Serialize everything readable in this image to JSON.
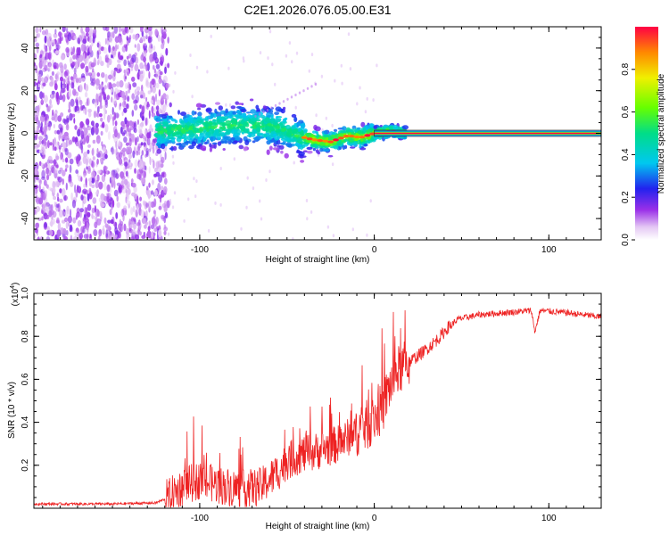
{
  "title": "C2E1.2026.076.05.00.E31",
  "colors": {
    "snr_line": "#ee2222",
    "frame": "#000000",
    "background": "#ffffff"
  },
  "chart_data": [
    {
      "type": "heatmap",
      "title": "C2E1.2026.076.05.00.E31",
      "xlabel": "Height of straight line (km)",
      "ylabel": "Frequency (Hz)",
      "xlim": [
        -195,
        130
      ],
      "ylim": [
        -50,
        50
      ],
      "xticks": [
        -100,
        0,
        100
      ],
      "yticks": [
        -40,
        -20,
        0,
        20,
        40
      ],
      "colorbar": {
        "label": "Normalized spectral amplitude",
        "range": [
          0.0,
          1.0
        ],
        "ticks": [
          0.0,
          0.2,
          0.4,
          0.6,
          0.8
        ],
        "tick_labels": [
          "0.0",
          "0.2",
          "0.4",
          "0.6",
          "0.8"
        ]
      },
      "features": {
        "noise_region_x": [
          -195,
          -118
        ],
        "spread_band_x": [
          -125,
          18
        ],
        "carrier_line_x": [
          0,
          130
        ],
        "carrier_frequency": 0,
        "center_profile": [
          [
            -120,
            1
          ],
          [
            -80,
            4
          ],
          [
            -55,
            3
          ],
          [
            -45,
            -1
          ],
          [
            -35,
            -3
          ],
          [
            -25,
            -4
          ],
          [
            -15,
            -1
          ],
          [
            -8,
            -2
          ],
          [
            0,
            0
          ],
          [
            10,
            1
          ],
          [
            18,
            0
          ]
        ]
      }
    },
    {
      "type": "line",
      "xlabel": "Height of straight line (km)",
      "ylabel": "SNR (10 * v/v)",
      "y_multiplier": "(x10^4)",
      "y_multiplier_parts": {
        "base": "(x10",
        "exp": "4",
        "close": ")"
      },
      "xlim": [
        -195,
        130
      ],
      "ylim": [
        0,
        1.0
      ],
      "xticks": [
        -100,
        0,
        100
      ],
      "yticks": [
        0.2,
        0.4,
        0.6,
        0.8,
        1.0
      ],
      "ytick_labels": [
        "0.2",
        "0.4",
        "0.6",
        "0.8",
        "1.0"
      ],
      "series": [
        {
          "name": "SNR",
          "x": [
            -195,
            -150,
            -125,
            -118,
            -110,
            -100,
            -95,
            -85,
            -75,
            -65,
            -55,
            -50,
            -42,
            -35,
            -28,
            -20,
            -10,
            -5,
            0,
            5,
            8,
            12,
            15,
            20,
            25,
            30,
            38,
            42,
            48,
            60,
            75,
            90,
            92,
            95,
            110,
            130
          ],
          "y": [
            0.02,
            0.02,
            0.025,
            0.05,
            0.1,
            0.13,
            0.12,
            0.1,
            0.09,
            0.1,
            0.17,
            0.22,
            0.25,
            0.26,
            0.28,
            0.3,
            0.36,
            0.38,
            0.42,
            0.47,
            0.55,
            0.62,
            0.65,
            0.68,
            0.71,
            0.74,
            0.8,
            0.84,
            0.88,
            0.9,
            0.91,
            0.92,
            0.82,
            0.92,
            0.91,
            0.89
          ]
        }
      ]
    }
  ]
}
